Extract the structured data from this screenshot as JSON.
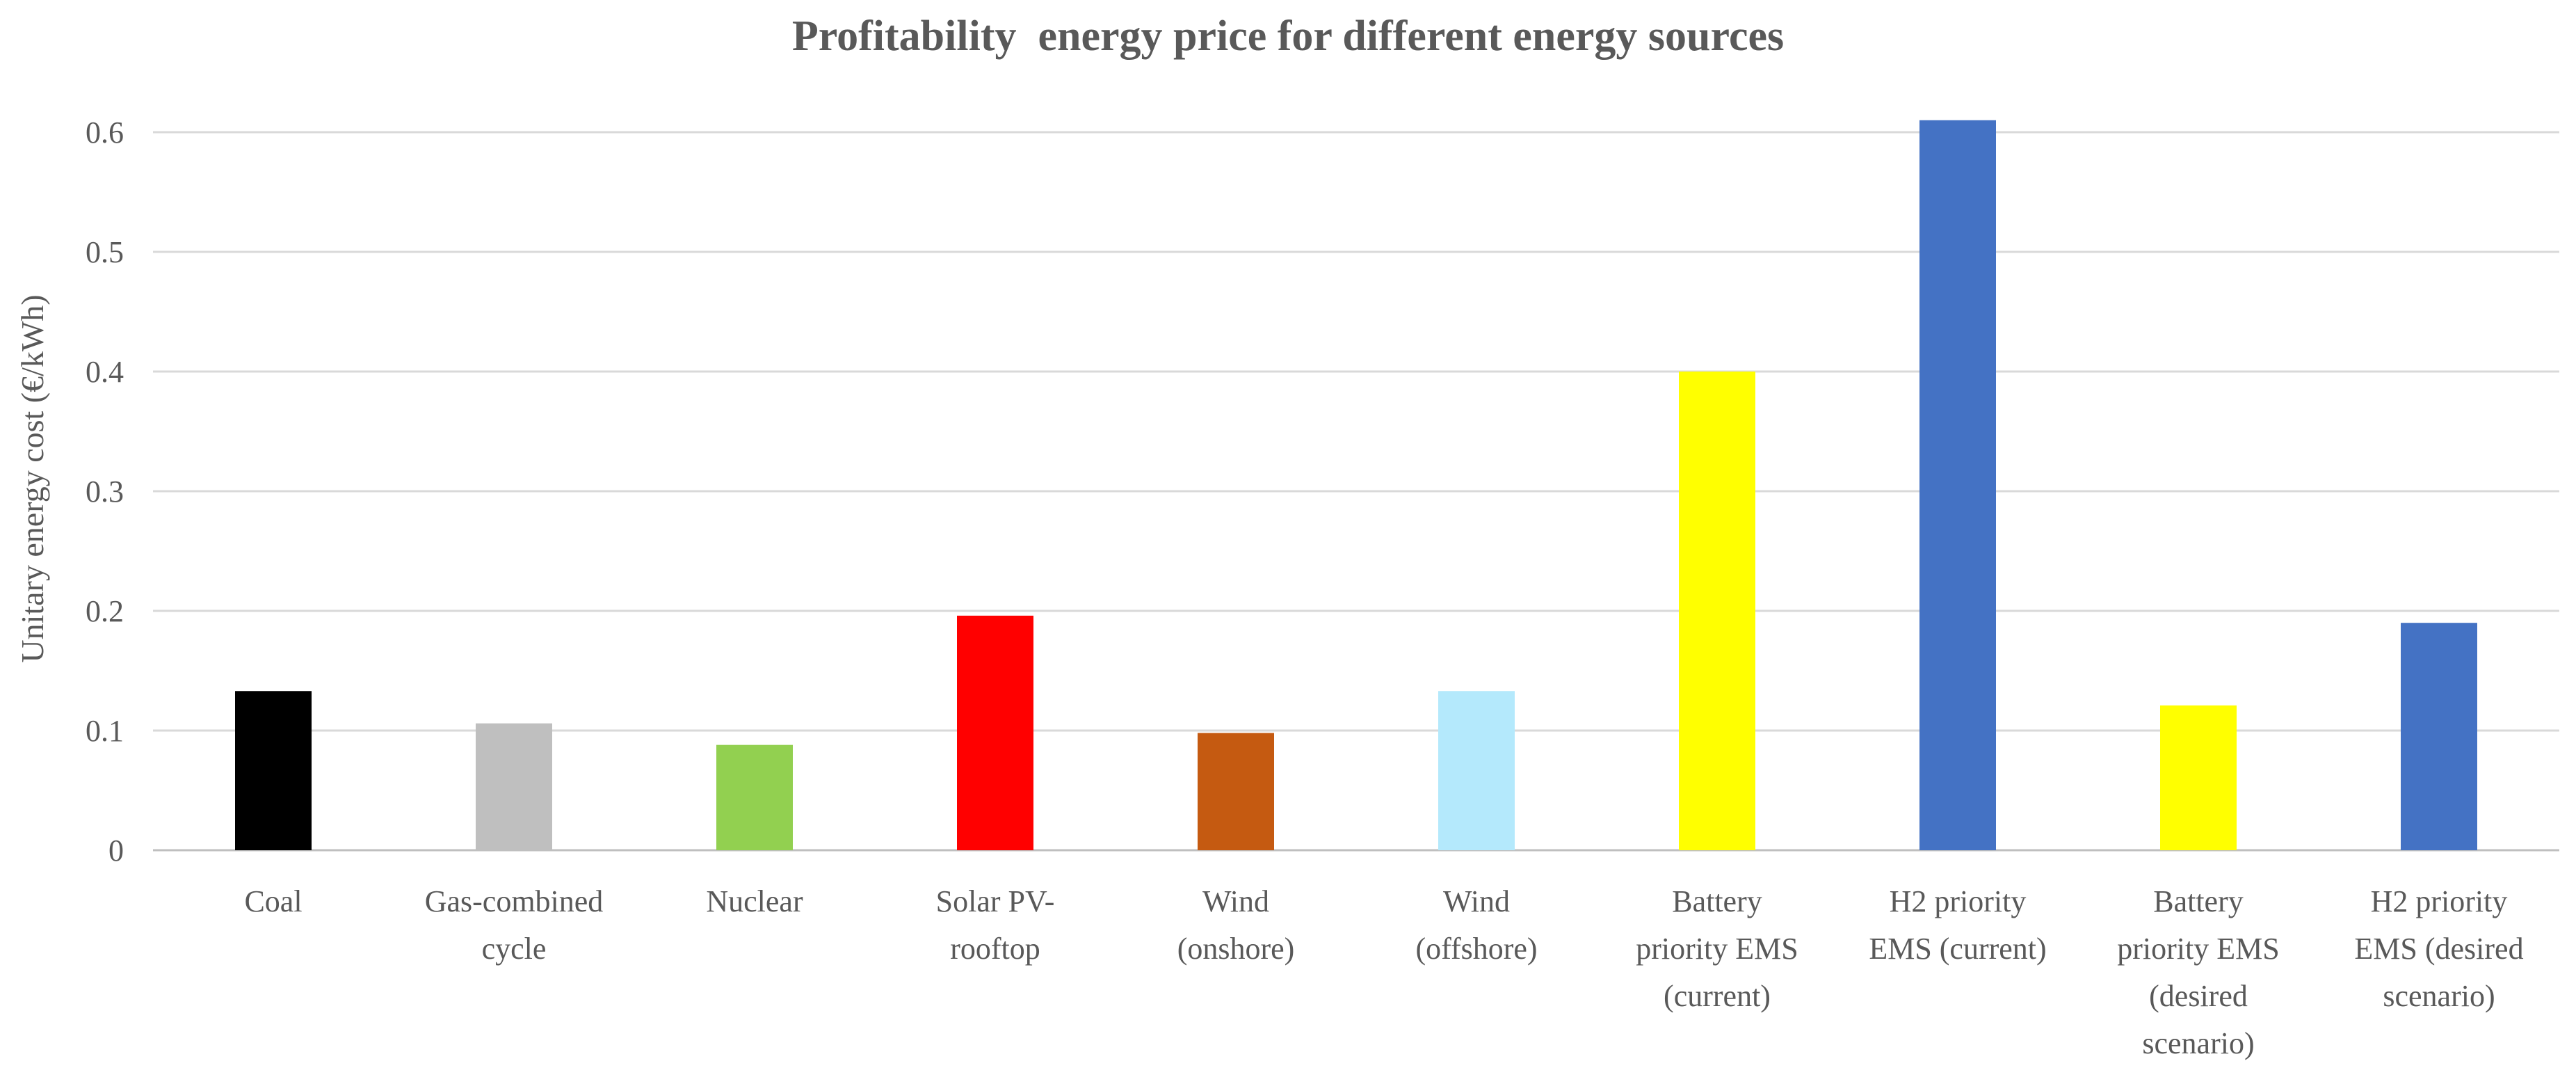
{
  "chart_data": {
    "type": "bar",
    "title": "Profitability  energy price for different energy sources",
    "xlabel": "",
    "ylabel": "Unitary energy cost (€/kWh)",
    "ylim": [
      0,
      0.6
    ],
    "yticks": [
      "0",
      "0.1",
      "0.2",
      "0.3",
      "0.4",
      "0.5",
      "0.6"
    ],
    "grid": true,
    "legend": "none",
    "categories": [
      [
        "Coal"
      ],
      [
        "Gas-combined",
        "cycle"
      ],
      [
        "Nuclear"
      ],
      [
        "Solar PV-",
        "rooftop"
      ],
      [
        "Wind",
        "(onshore)"
      ],
      [
        "Wind",
        "(offshore)"
      ],
      [
        "Battery",
        "priority EMS",
        "(current)"
      ],
      [
        "H2 priority",
        "EMS (current)"
      ],
      [
        "Battery",
        "priority EMS",
        "(desired",
        "scenario)"
      ],
      [
        "H2 priority",
        "EMS (desired",
        "scenario)"
      ]
    ],
    "values": [
      0.133,
      0.106,
      0.088,
      0.196,
      0.098,
      0.133,
      0.4,
      0.61,
      0.121,
      0.19
    ],
    "colors": [
      "#000000",
      "#bfbfbf",
      "#92d050",
      "#ff0000",
      "#c55a11",
      "#b4e9fc",
      "#ffff00",
      "#4472c4",
      "#ffff00",
      "#4472c4"
    ]
  }
}
